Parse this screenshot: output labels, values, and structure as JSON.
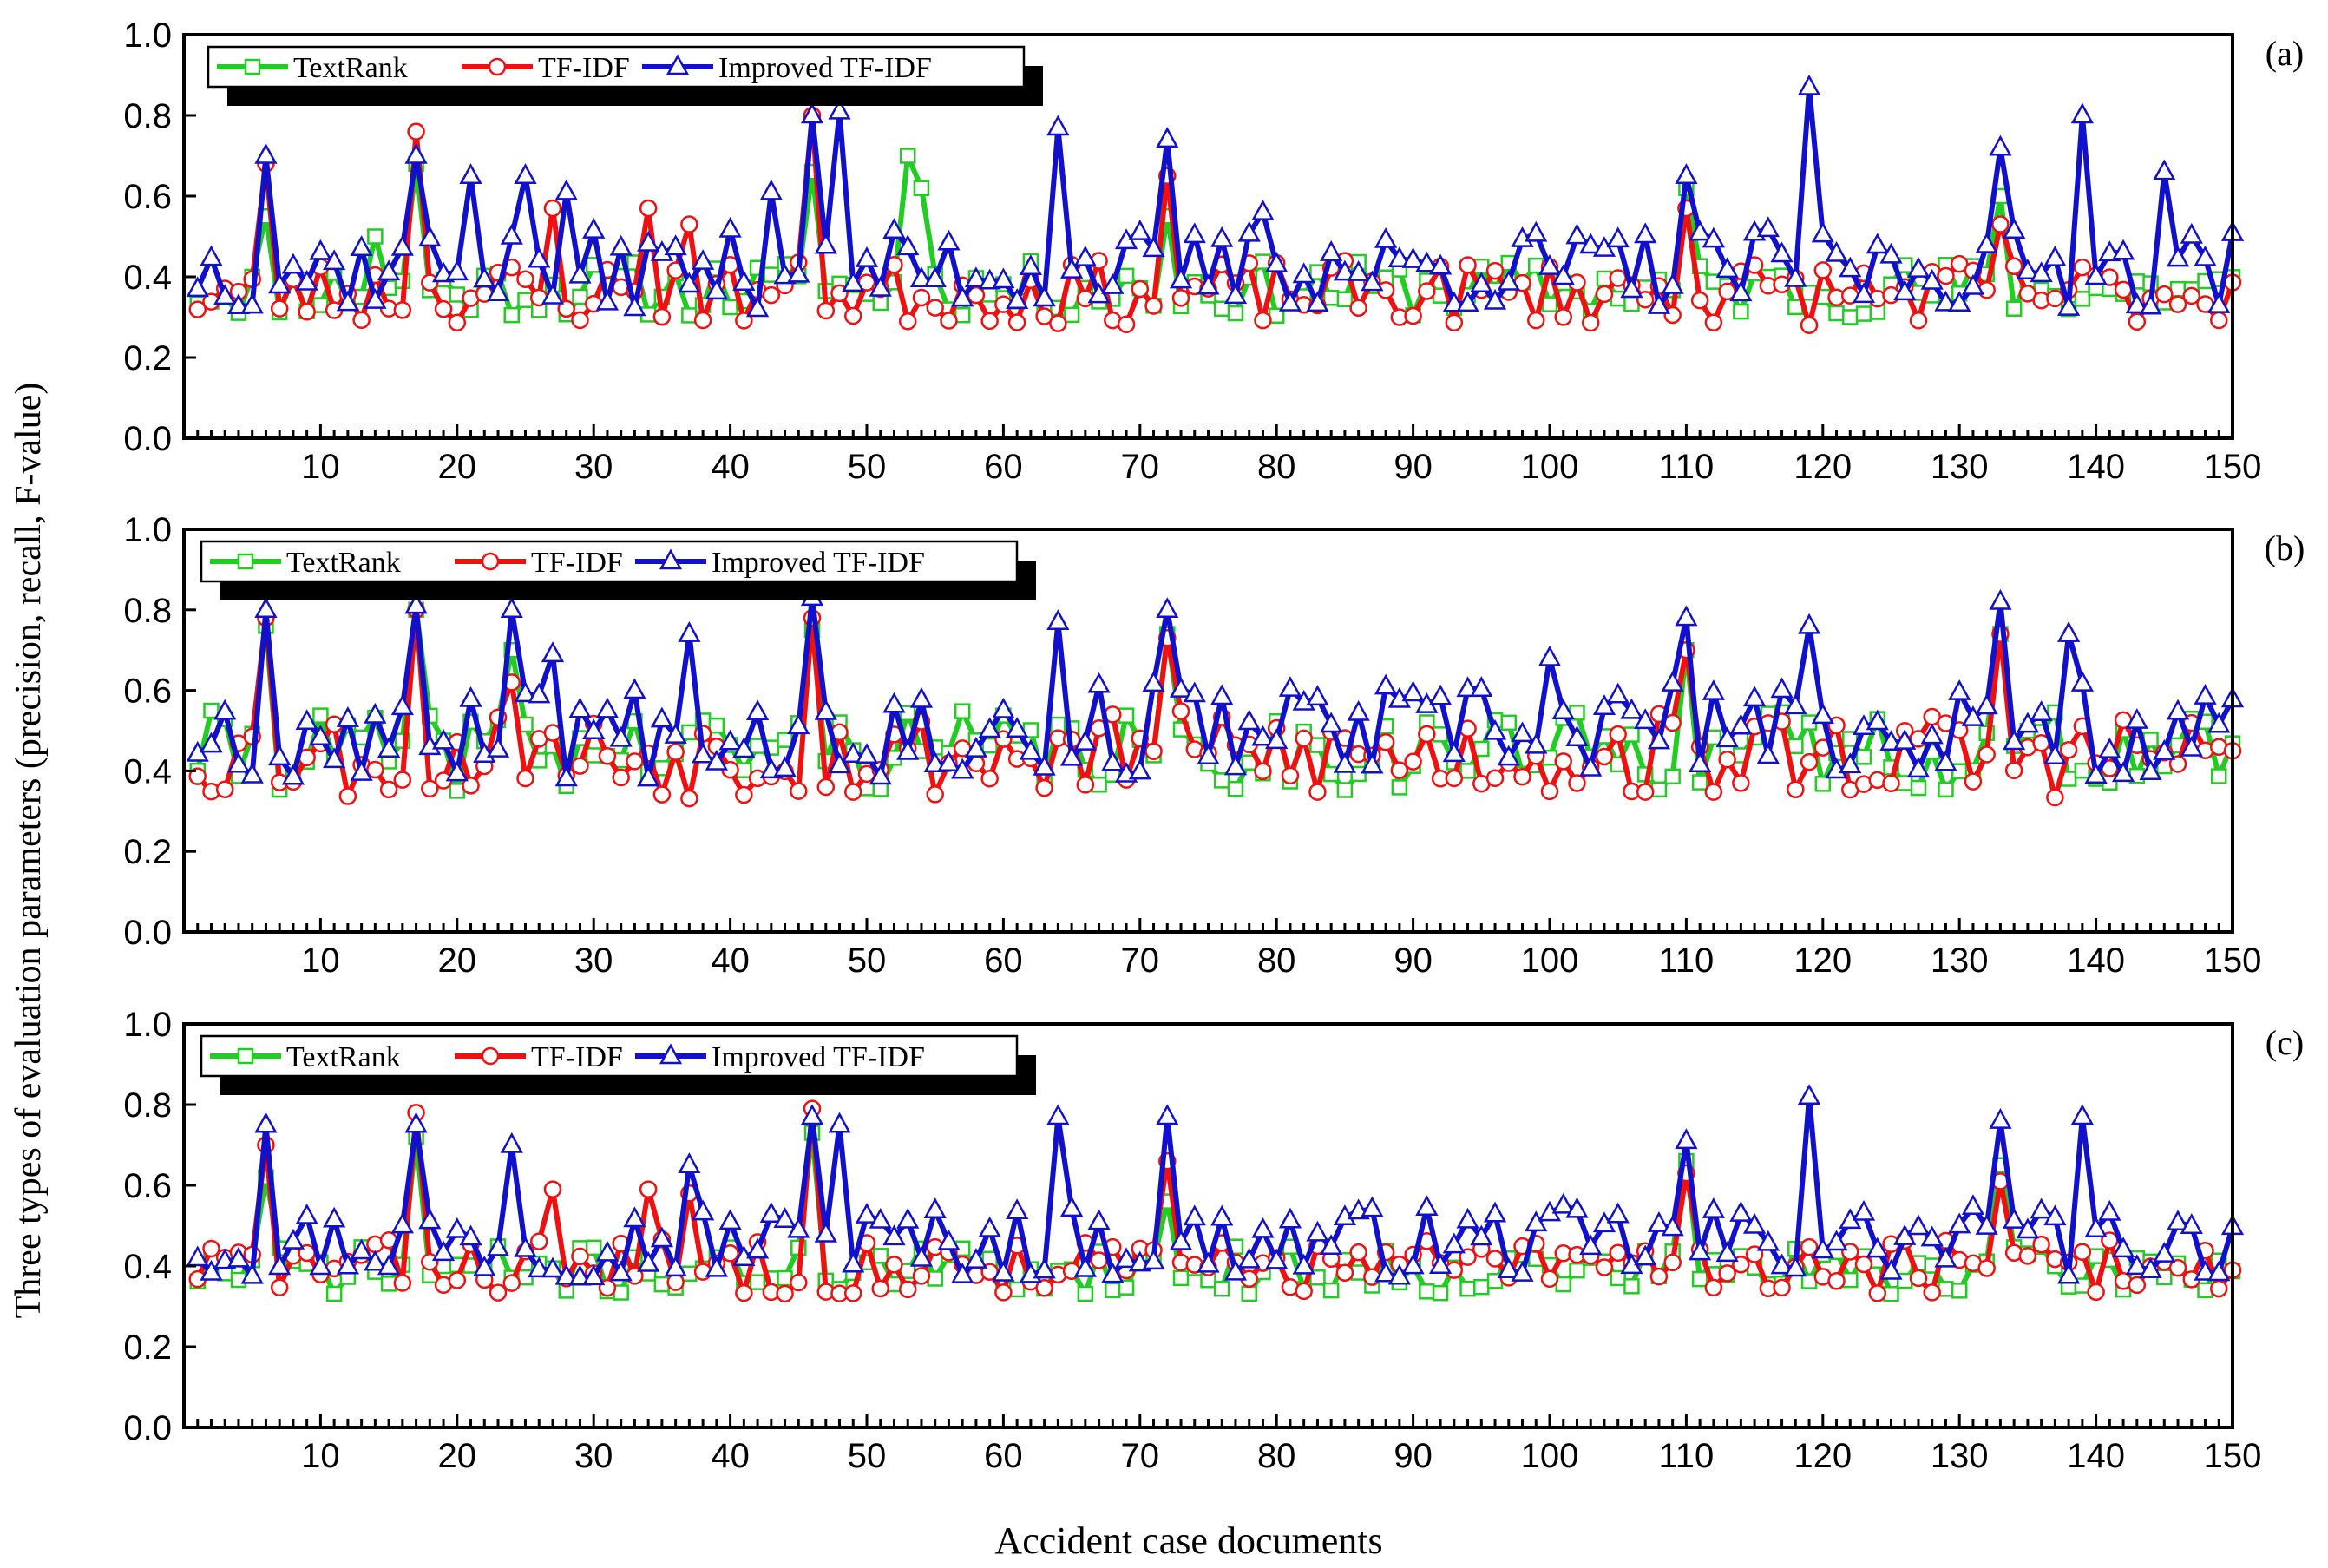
{
  "figure": {
    "ylabel": "Three types of evaluation parameters (precision, recall, F-value)",
    "xlabel": "Accident case documents"
  },
  "chart_data": [
    {
      "type": "line",
      "panel": "(a)",
      "x_range": [
        1,
        150
      ],
      "xlim": [
        0,
        150
      ],
      "ylim": [
        0.0,
        1.0
      ],
      "x_ticks": [
        10,
        20,
        30,
        40,
        50,
        60,
        70,
        80,
        90,
        100,
        110,
        120,
        130,
        140,
        150
      ],
      "y_ticks": [
        "0.0",
        "0.2",
        "0.4",
        "0.6",
        "0.8",
        "1.0"
      ],
      "legend": [
        "TextRank",
        "TF-IDF",
        "Improved TF-IDF"
      ],
      "series": [
        {
          "name": "TextRank",
          "color": "#22cc22",
          "marker": "square",
          "base": 0.37,
          "amp": 0.07,
          "seed": 11,
          "peaks": [
            [
              6,
              0.55
            ],
            [
              14,
              0.5
            ],
            [
              17,
              0.68
            ],
            [
              46,
              0.66
            ],
            [
              53,
              0.7
            ],
            [
              54,
              0.62
            ],
            [
              72,
              0.55
            ],
            [
              110,
              0.62
            ],
            [
              133,
              0.6
            ]
          ]
        },
        {
          "name": "TF-IDF",
          "color": "#ee1111",
          "marker": "circle",
          "base": 0.36,
          "amp": 0.08,
          "seed": 23,
          "peaks": [
            [
              6,
              0.68
            ],
            [
              17,
              0.76
            ],
            [
              27,
              0.57
            ],
            [
              34,
              0.57
            ],
            [
              37,
              0.53
            ],
            [
              46,
              0.8
            ],
            [
              72,
              0.65
            ],
            [
              110,
              0.57
            ],
            [
              133,
              0.53
            ]
          ]
        },
        {
          "name": "Improved TF-IDF",
          "color": "#1111cc",
          "marker": "triangle",
          "base": 0.42,
          "amp": 0.1,
          "seed": 37,
          "peaks": [
            [
              6,
              0.7
            ],
            [
              17,
              0.7
            ],
            [
              21,
              0.65
            ],
            [
              25,
              0.65
            ],
            [
              28,
              0.61
            ],
            [
              43,
              0.61
            ],
            [
              46,
              0.8
            ],
            [
              48,
              0.81
            ],
            [
              64,
              0.77
            ],
            [
              72,
              0.74
            ],
            [
              79,
              0.56
            ],
            [
              110,
              0.65
            ],
            [
              119,
              0.87
            ],
            [
              133,
              0.72
            ],
            [
              139,
              0.8
            ],
            [
              145,
              0.66
            ]
          ]
        }
      ]
    },
    {
      "type": "line",
      "panel": "(b)",
      "x_range": [
        1,
        150
      ],
      "xlim": [
        0,
        150
      ],
      "ylim": [
        0.0,
        1.0
      ],
      "x_ticks": [
        10,
        20,
        30,
        40,
        50,
        60,
        70,
        80,
        90,
        100,
        110,
        120,
        130,
        140,
        150
      ],
      "y_ticks": [
        "0.0",
        "0.2",
        "0.4",
        "0.6",
        "0.8",
        "1.0"
      ],
      "legend": [
        "TextRank",
        "TF-IDF",
        "Improved TF-IDF"
      ],
      "series": [
        {
          "name": "TextRank",
          "color": "#22cc22",
          "marker": "square",
          "base": 0.45,
          "amp": 0.1,
          "seed": 41,
          "peaks": [
            [
              6,
              0.76
            ],
            [
              17,
              0.8
            ],
            [
              24,
              0.7
            ],
            [
              46,
              0.75
            ],
            [
              72,
              0.74
            ],
            [
              110,
              0.7
            ],
            [
              133,
              0.74
            ]
          ]
        },
        {
          "name": "TF-IDF",
          "color": "#ee1111",
          "marker": "circle",
          "base": 0.44,
          "amp": 0.11,
          "seed": 53,
          "peaks": [
            [
              6,
              0.78
            ],
            [
              17,
              0.8
            ],
            [
              24,
              0.62
            ],
            [
              46,
              0.78
            ],
            [
              72,
              0.73
            ],
            [
              110,
              0.7
            ],
            [
              133,
              0.74
            ]
          ]
        },
        {
          "name": "Improved TF-IDF",
          "color": "#1111cc",
          "marker": "triangle",
          "base": 0.5,
          "amp": 0.12,
          "seed": 67,
          "peaks": [
            [
              6,
              0.8
            ],
            [
              17,
              0.81
            ],
            [
              24,
              0.8
            ],
            [
              27,
              0.69
            ],
            [
              37,
              0.74
            ],
            [
              46,
              0.83
            ],
            [
              64,
              0.77
            ],
            [
              72,
              0.8
            ],
            [
              100,
              0.68
            ],
            [
              110,
              0.78
            ],
            [
              119,
              0.76
            ],
            [
              133,
              0.82
            ],
            [
              138,
              0.74
            ]
          ]
        }
      ]
    },
    {
      "type": "line",
      "panel": "(c)",
      "x_range": [
        1,
        150
      ],
      "xlim": [
        0,
        150
      ],
      "ylim": [
        0.0,
        1.0
      ],
      "x_ticks": [
        10,
        20,
        30,
        40,
        50,
        60,
        70,
        80,
        90,
        100,
        110,
        120,
        130,
        140,
        150
      ],
      "y_ticks": [
        "0.0",
        "0.2",
        "0.4",
        "0.6",
        "0.8",
        "1.0"
      ],
      "legend": [
        "TextRank",
        "TF-IDF",
        "Improved TF-IDF"
      ],
      "series": [
        {
          "name": "TextRank",
          "color": "#22cc22",
          "marker": "square",
          "base": 0.39,
          "amp": 0.06,
          "seed": 71,
          "peaks": [
            [
              6,
              0.62
            ],
            [
              17,
              0.72
            ],
            [
              46,
              0.73
            ],
            [
              72,
              0.56
            ],
            [
              110,
              0.66
            ],
            [
              133,
              0.65
            ]
          ]
        },
        {
          "name": "TF-IDF",
          "color": "#ee1111",
          "marker": "circle",
          "base": 0.4,
          "amp": 0.07,
          "seed": 83,
          "peaks": [
            [
              6,
              0.7
            ],
            [
              17,
              0.78
            ],
            [
              27,
              0.59
            ],
            [
              34,
              0.59
            ],
            [
              37,
              0.58
            ],
            [
              46,
              0.79
            ],
            [
              72,
              0.66
            ],
            [
              110,
              0.63
            ],
            [
              133,
              0.61
            ]
          ]
        },
        {
          "name": "Improved TF-IDF",
          "color": "#1111cc",
          "marker": "triangle",
          "base": 0.46,
          "amp": 0.09,
          "seed": 97,
          "peaks": [
            [
              6,
              0.75
            ],
            [
              17,
              0.75
            ],
            [
              24,
              0.7
            ],
            [
              37,
              0.65
            ],
            [
              46,
              0.77
            ],
            [
              48,
              0.75
            ],
            [
              64,
              0.77
            ],
            [
              72,
              0.77
            ],
            [
              110,
              0.71
            ],
            [
              119,
              0.82
            ],
            [
              133,
              0.76
            ],
            [
              139,
              0.77
            ]
          ]
        }
      ]
    }
  ]
}
